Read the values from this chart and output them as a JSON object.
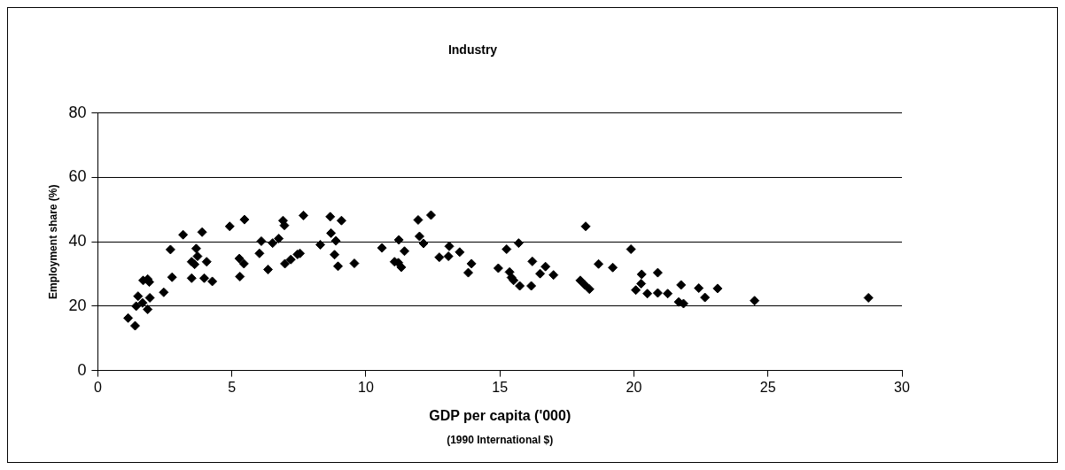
{
  "chart_data": {
    "type": "scatter",
    "title": "Industry",
    "xlabel": "GDP per capita ('000)",
    "ylabel": "Employment share (%)",
    "annotations": [
      "(1990 International $)"
    ],
    "x": [
      1.13,
      1.39,
      1.5,
      1.43,
      1.67,
      1.86,
      1.94,
      1.69,
      1.86,
      1.92,
      2.46,
      2.71,
      2.77,
      3.18,
      3.5,
      3.5,
      3.67,
      3.72,
      3.61,
      3.89,
      4.06,
      3.97,
      4.27,
      4.92,
      5.3,
      5.28,
      5.45,
      5.47,
      6.03,
      6.1,
      6.35,
      6.52,
      6.75,
      6.91,
      6.96,
      6.98,
      7.2,
      7.45,
      7.54,
      7.67,
      8.3,
      8.67,
      9.09,
      8.7,
      8.88,
      8.83,
      8.96,
      9.57,
      10.6,
      11.23,
      11.07,
      11.21,
      11.32,
      11.44,
      11.95,
      12.0,
      12.15,
      12.43,
      12.74,
      13.08,
      13.11,
      13.5,
      13.94,
      13.82,
      14.94,
      15.25,
      15.7,
      15.36,
      15.43,
      15.51,
      15.74,
      16.17,
      16.21,
      16.7,
      16.5,
      17.0,
      18.2,
      18.0,
      18.17,
      18.34,
      18.68,
      19.21,
      19.89,
      20.07,
      20.29,
      20.27,
      20.5,
      20.89,
      20.89,
      21.26,
      21.76,
      21.67,
      21.85,
      22.42,
      22.65,
      23.12,
      24.5,
      28.75
    ],
    "values": [
      16.3,
      13.9,
      23.1,
      20,
      21,
      19,
      22.6,
      28,
      28.4,
      27.5,
      24.3,
      37.6,
      29,
      42.2,
      28.7,
      33.8,
      37.9,
      35.5,
      33,
      43,
      33.8,
      28.7,
      27.7,
      44.8,
      29.2,
      34.8,
      33.2,
      46.9,
      36.4,
      40.2,
      31.4,
      39.6,
      41,
      46.6,
      45.1,
      33.2,
      34.5,
      36.1,
      36.4,
      48.2,
      39.1,
      47.8,
      46.6,
      42.7,
      40.3,
      36,
      32.4,
      33.3,
      38.1,
      40.6,
      33.8,
      33.5,
      32.1,
      37.1,
      46.8,
      41.7,
      39.5,
      48.3,
      35.2,
      35.5,
      38.6,
      36.8,
      33.2,
      30.4,
      31.8,
      37.7,
      39.6,
      30.6,
      28.9,
      28,
      26.3,
      26.3,
      33.9,
      32.3,
      30.1,
      29.7,
      44.8,
      28,
      26.6,
      25.3,
      33.1,
      32,
      37.7,
      25,
      29.9,
      27,
      23.9,
      30.4,
      24.1,
      23.9,
      26.6,
      21.3,
      20.8,
      25.6,
      22.7,
      25.5,
      21.7,
      22.6
    ],
    "color": "#000000",
    "marker": "diamond",
    "xlim": [
      0,
      30
    ],
    "xticks": [
      0,
      5,
      10,
      15,
      20,
      25,
      30
    ],
    "ylim": [
      0,
      80
    ],
    "yticks": [
      0,
      20,
      40,
      60,
      80
    ],
    "grid": "y",
    "legend": false
  }
}
